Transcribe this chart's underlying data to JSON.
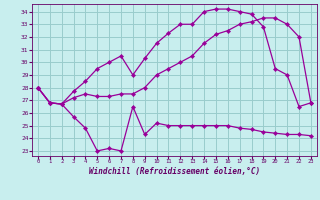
{
  "xlabel": "Windchill (Refroidissement éolien,°C)",
  "bg_color": "#c8eeee",
  "grid_color": "#99cccc",
  "line_color": "#990099",
  "x_ticks": [
    0,
    1,
    2,
    3,
    4,
    5,
    6,
    7,
    8,
    9,
    10,
    11,
    12,
    13,
    14,
    15,
    16,
    17,
    18,
    19,
    20,
    21,
    22,
    23
  ],
  "y_ticks": [
    23,
    24,
    25,
    26,
    27,
    28,
    29,
    30,
    31,
    32,
    33,
    34
  ],
  "ylim": [
    22.6,
    34.6
  ],
  "xlim": [
    -0.5,
    23.5
  ],
  "line1_x": [
    0,
    1,
    2,
    3,
    4,
    5,
    6,
    7,
    8,
    9,
    10,
    11,
    12,
    13,
    14,
    15,
    16,
    17,
    18,
    19,
    20,
    21,
    22,
    23
  ],
  "line1_y": [
    28.0,
    26.8,
    26.7,
    27.2,
    27.5,
    27.3,
    27.3,
    27.5,
    27.5,
    28.0,
    29.0,
    29.5,
    30.0,
    30.5,
    31.5,
    32.2,
    32.5,
    33.0,
    33.2,
    33.5,
    33.5,
    33.0,
    32.0,
    26.8
  ],
  "line2_x": [
    0,
    1,
    2,
    3,
    4,
    5,
    6,
    7,
    8,
    9,
    10,
    11,
    12,
    13,
    14,
    15,
    16,
    17,
    18,
    19,
    20,
    21,
    22,
    23
  ],
  "line2_y": [
    28.0,
    26.8,
    26.7,
    27.7,
    28.5,
    29.5,
    30.0,
    30.5,
    29.0,
    30.3,
    31.5,
    32.3,
    33.0,
    33.0,
    34.0,
    34.2,
    34.2,
    34.0,
    33.8,
    32.8,
    29.5,
    29.0,
    26.5,
    26.8
  ],
  "line3_x": [
    0,
    1,
    2,
    3,
    4,
    5,
    6,
    7,
    8,
    9,
    10,
    11,
    12,
    13,
    14,
    15,
    16,
    17,
    18,
    19,
    20,
    21,
    22,
    23
  ],
  "line3_y": [
    28.0,
    26.8,
    26.7,
    25.7,
    24.8,
    23.0,
    23.2,
    23.0,
    26.5,
    24.3,
    25.2,
    25.0,
    25.0,
    25.0,
    25.0,
    25.0,
    25.0,
    24.8,
    24.7,
    24.5,
    24.4,
    24.3,
    24.3,
    24.2
  ]
}
